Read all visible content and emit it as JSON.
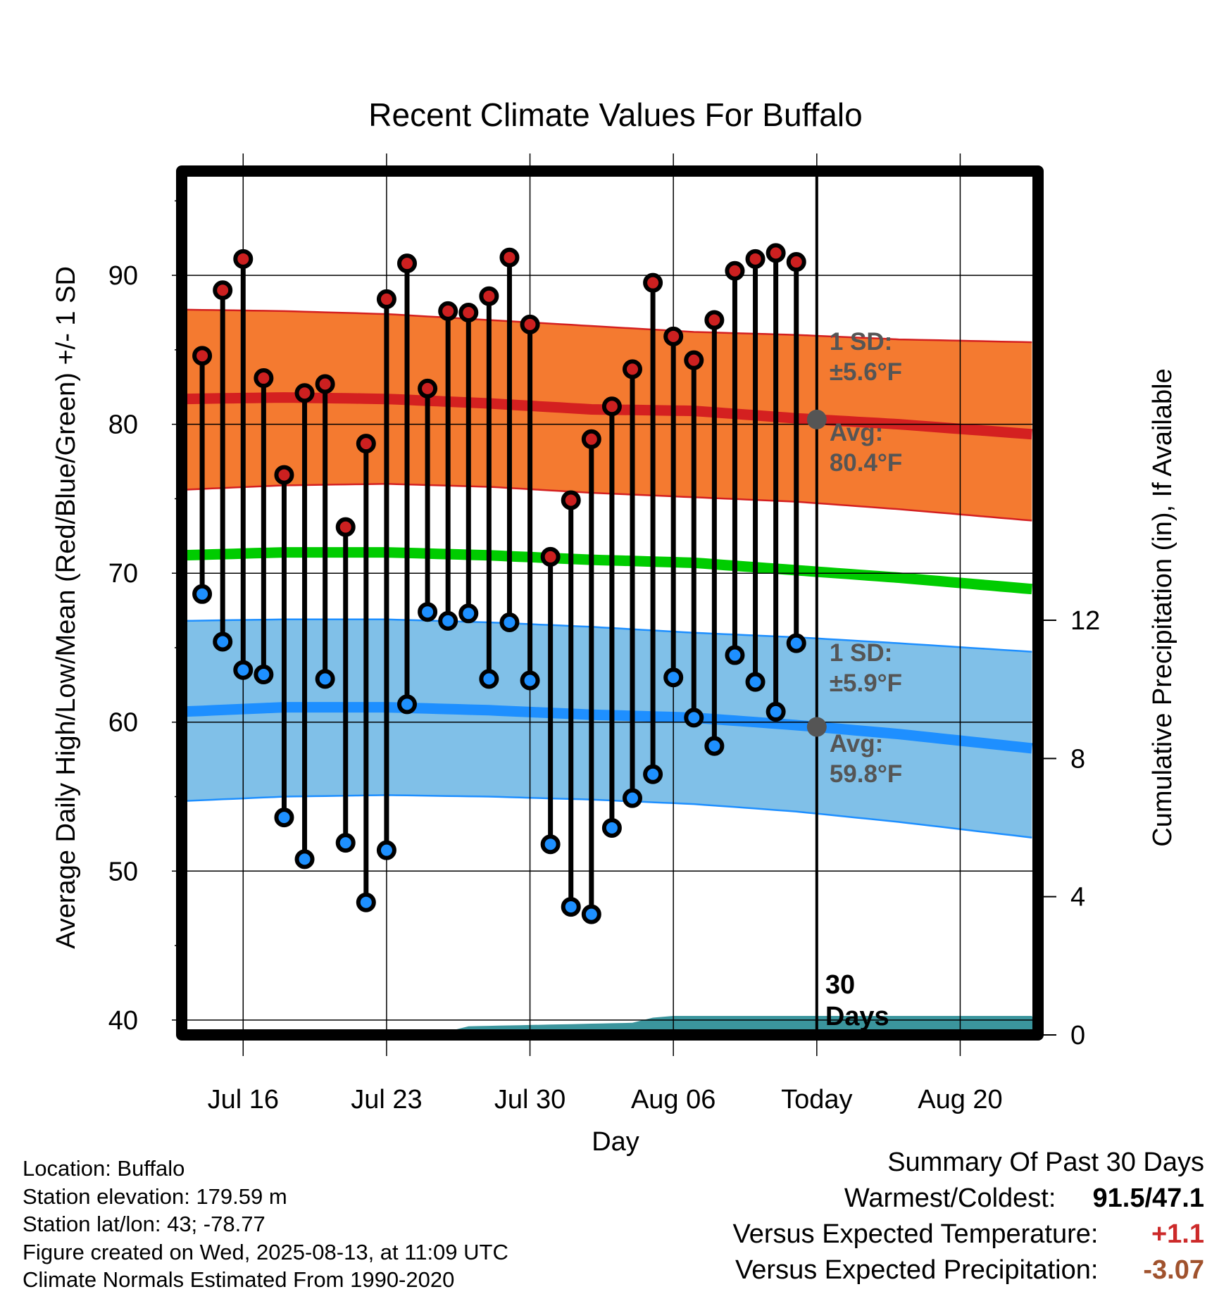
{
  "chart_data": {
    "type": "line",
    "title": "Recent Climate Values For Buffalo",
    "xlabel": "Day",
    "ylabel": "Average Daily High/Low/Mean (Red/Blue/Green) +/- 1 SD",
    "ylabel_right": "Cumulative Precipitation (in), If Available",
    "ylim": [
      39,
      97
    ],
    "ylim_right": [
      0,
      25
    ],
    "xlim_day_index": [
      0,
      41.8
    ],
    "y_ticks": [
      "40",
      "50",
      "60",
      "70",
      "80",
      "90"
    ],
    "y_ticks_right": [
      "0",
      "4",
      "8",
      "12"
    ],
    "x_ticks": [
      {
        "label": "Jul 16",
        "day": 3
      },
      {
        "label": "Jul 23",
        "day": 10
      },
      {
        "label": "Jul 30",
        "day": 17
      },
      {
        "label": "Aug 06",
        "day": 24
      },
      {
        "label": "Today",
        "day": 31
      },
      {
        "label": "Aug 20",
        "day": 38
      }
    ],
    "day_index_note": "day 0 = Jul 13",
    "today_day": 31,
    "today_marker_label": "30\nDays",
    "daily_observations": {
      "days": [
        1,
        2,
        3,
        4,
        5,
        6,
        7,
        8,
        9,
        10,
        11,
        12,
        13,
        14,
        15,
        16,
        17,
        18,
        19,
        20,
        21,
        22,
        23,
        24,
        25,
        26,
        27,
        28,
        29,
        30
      ],
      "highs": [
        84.6,
        89.0,
        91.1,
        83.1,
        76.6,
        82.1,
        82.7,
        73.1,
        78.7,
        88.4,
        90.8,
        82.4,
        87.6,
        87.5,
        88.6,
        91.2,
        86.7,
        71.1,
        74.9,
        79.0,
        81.2,
        83.7,
        89.5,
        85.9,
        84.3,
        87.0,
        90.3,
        91.1,
        91.5,
        90.9
      ],
      "lows": [
        68.6,
        65.4,
        63.5,
        63.2,
        53.6,
        50.8,
        62.9,
        51.9,
        47.9,
        51.4,
        61.2,
        67.4,
        66.8,
        67.3,
        62.9,
        66.7,
        62.8,
        51.8,
        47.6,
        47.1,
        52.9,
        54.9,
        56.5,
        63.0,
        60.3,
        58.4,
        64.5,
        62.7,
        60.7,
        65.3
      ]
    },
    "normals": {
      "days": [
        0,
        5,
        10,
        15,
        20,
        25,
        30,
        35,
        41.8
      ],
      "high_avg": [
        81.7,
        81.8,
        81.7,
        81.4,
        81.0,
        80.9,
        80.4,
        80.0,
        79.3
      ],
      "high_sd_upper": [
        87.7,
        87.6,
        87.4,
        87.0,
        86.6,
        86.2,
        86.0,
        85.7,
        85.5
      ],
      "high_sd_lower": [
        75.6,
        75.9,
        76.0,
        75.8,
        75.4,
        75.1,
        74.8,
        74.3,
        73.5
      ],
      "mean_avg": [
        71.2,
        71.4,
        71.4,
        71.2,
        70.9,
        70.7,
        70.2,
        69.7,
        68.9
      ],
      "low_avg": [
        60.7,
        61.0,
        61.0,
        60.8,
        60.5,
        60.3,
        59.8,
        59.2,
        58.2
      ],
      "low_sd_upper": [
        66.8,
        66.9,
        66.9,
        66.7,
        66.4,
        66.0,
        65.7,
        65.3,
        64.7
      ],
      "low_sd_lower": [
        54.7,
        55.0,
        55.1,
        55.0,
        54.8,
        54.5,
        54.0,
        53.3,
        52.2
      ]
    },
    "precipitation": {
      "days": [
        0,
        13,
        14,
        18,
        22,
        23,
        24,
        41.8
      ],
      "cumulative_in": [
        0.05,
        0.1,
        0.25,
        0.3,
        0.35,
        0.5,
        0.55,
        0.55
      ]
    },
    "annotations": {
      "high_sd_label": "1 SD:",
      "high_sd_value": "±5.6°F",
      "high_avg_label": "Avg:",
      "high_avg_value": "80.4°F",
      "low_sd_label": "1 SD:",
      "low_sd_value": "±5.9°F",
      "low_avg_label": "Avg:",
      "low_avg_value": "59.8°F"
    },
    "colors": {
      "high_band": "#f47a30",
      "high_line": "#d42020",
      "mean_line": "#00cc00",
      "low_band": "#80c0e8",
      "low_line": "#1e8fff",
      "precip": "#3b959d",
      "high_point": "#cc2020",
      "low_point": "#1e90ff",
      "annotation_text": "#555555"
    },
    "grid": true
  },
  "info": {
    "location": "Location: Buffalo",
    "elevation": "Station elevation: 179.59 m",
    "latlon": "Station lat/lon: 43; -78.77",
    "created": "Figure created on Wed, 2025-08-13, at 11:09 UTC",
    "normals": "Climate Normals Estimated From 1990-2020"
  },
  "summary": {
    "title": "Summary Of Past 30 Days",
    "warmest_coldest_label": "Warmest/Coldest:",
    "warmest_coldest_value": "91.5/47.1",
    "temp_label": "Versus Expected Temperature:",
    "temp_value": "+1.1",
    "temp_color": "#cc2a2a",
    "precip_label": "Versus Expected Precipitation:",
    "precip_value": "-3.07",
    "precip_color": "#a0522d"
  }
}
